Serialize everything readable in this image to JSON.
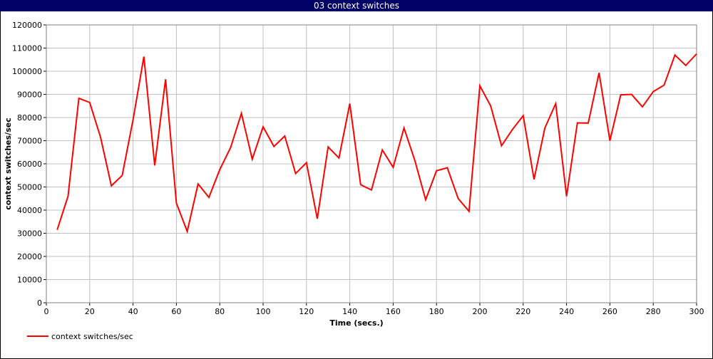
{
  "chart_data": {
    "type": "line",
    "title": "03 context switches",
    "xlabel": "Time (secs.)",
    "ylabel": "context switches/sec",
    "x": [
      5,
      10,
      15,
      20,
      25,
      30,
      35,
      40,
      45,
      50,
      55,
      60,
      65,
      70,
      75,
      80,
      85,
      90,
      95,
      100,
      105,
      110,
      115,
      120,
      125,
      130,
      135,
      140,
      145,
      150,
      155,
      160,
      165,
      170,
      175,
      180,
      185,
      190,
      195,
      200,
      205,
      210,
      215,
      220,
      225,
      230,
      235,
      240,
      245,
      250,
      255,
      260,
      265,
      270,
      275,
      280,
      285,
      290,
      295,
      300
    ],
    "series": [
      {
        "name": "context switches/sec",
        "color": "#ff0000",
        "values": [
          31500,
          46000,
          88300,
          86500,
          71500,
          50500,
          55000,
          79000,
          106300,
          59300,
          96500,
          43000,
          30800,
          51300,
          45500,
          57500,
          67000,
          81800,
          62000,
          76000,
          67500,
          72000,
          55800,
          60500,
          36300,
          67300,
          62500,
          86000,
          51000,
          48700,
          66000,
          58500,
          75500,
          61500,
          44500,
          57000,
          58300,
          45000,
          39500,
          93700,
          85000,
          67800,
          74800,
          80800,
          53300,
          75500,
          86000,
          46000,
          77700,
          77600,
          99300,
          70000,
          89800,
          90000,
          84600,
          91200,
          94000,
          107000,
          102500,
          107500
        ]
      }
    ],
    "xlim": [
      0,
      300
    ],
    "xticks": [
      0,
      20,
      40,
      60,
      80,
      100,
      120,
      140,
      160,
      180,
      200,
      220,
      240,
      260,
      280,
      300
    ],
    "ylim": [
      0,
      120000
    ],
    "yticks": [
      0,
      10000,
      20000,
      30000,
      40000,
      50000,
      60000,
      70000,
      80000,
      90000,
      100000,
      110000,
      120000
    ],
    "grid": true,
    "legend": "bottom-left"
  }
}
